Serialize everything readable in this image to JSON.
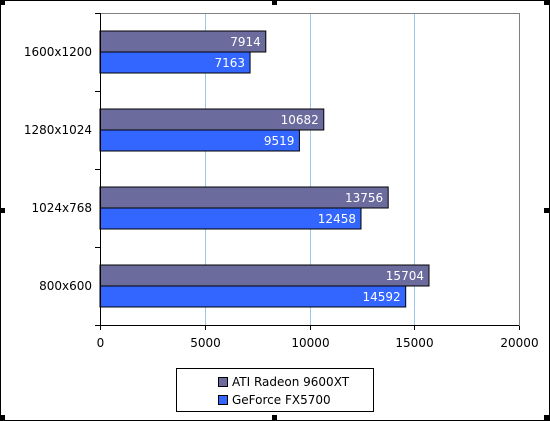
{
  "chart_data": {
    "type": "bar",
    "orientation": "horizontal",
    "categories": [
      "1600x1200",
      "1280x1024",
      "1024x768",
      "800x600"
    ],
    "series": [
      {
        "name": "ATI Radeon 9600XT",
        "values": [
          7914,
          10682,
          13756,
          15704
        ],
        "color": "#6b6b9e"
      },
      {
        "name": "GeForce FX5700",
        "values": [
          7163,
          9519,
          12458,
          14592
        ],
        "color": "#3366ff"
      }
    ],
    "xlim": [
      0,
      20000
    ],
    "xticks": [
      "0",
      "5000",
      "10000",
      "15000",
      "20000"
    ],
    "grid": true,
    "legend": "bottom",
    "title": "",
    "xlabel": "",
    "ylabel": ""
  }
}
